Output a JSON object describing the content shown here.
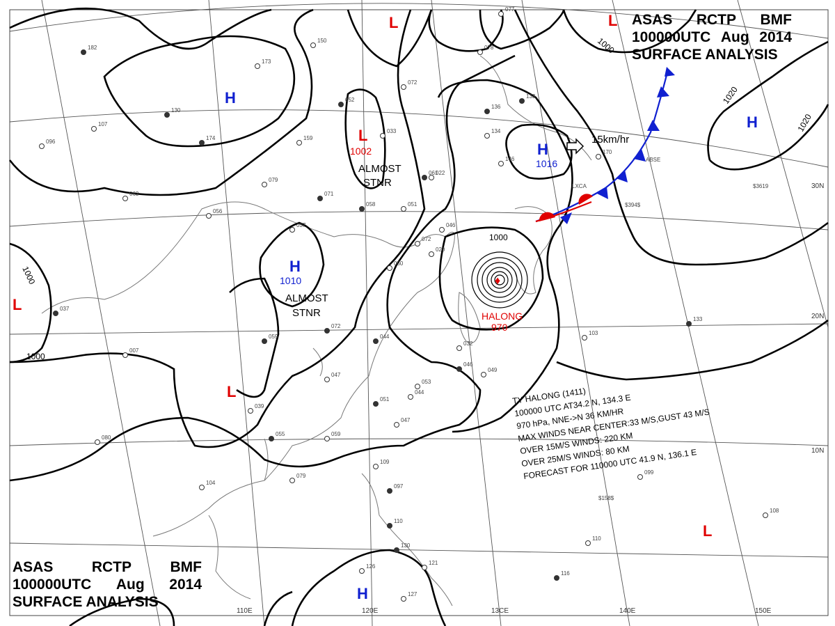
{
  "header": {
    "line1": [
      "ASAS",
      "RCTP",
      "BMF"
    ],
    "line2": [
      "100000UTC",
      "Aug",
      "2014"
    ],
    "line3": "SURFACE ANALYSIS"
  },
  "grid_labels": {
    "lon": [
      "110E",
      "120E",
      "13CE",
      "140E",
      "150E"
    ],
    "lat": [
      "30N",
      "20N",
      "10N"
    ]
  },
  "pressure_centers": [
    {
      "type": "L",
      "pressure": "1002",
      "note": "ALMOST\nSTNR"
    },
    {
      "type": "H",
      "pressure": "1010",
      "note": "ALMOST\nSTNR"
    },
    {
      "type": "H",
      "pressure": "1016",
      "motion": "15km/hr"
    },
    {
      "type": "L",
      "name": "HALONG",
      "pressure": "970"
    },
    {
      "type": "H"
    },
    {
      "type": "H"
    },
    {
      "type": "H"
    },
    {
      "type": "L"
    },
    {
      "type": "L"
    },
    {
      "type": "L"
    },
    {
      "type": "L"
    }
  ],
  "isobar_labels": [
    "1000",
    "1000",
    "1000",
    "1000",
    "1020",
    "1020"
  ],
  "typhoon_info": {
    "lines": [
      "TY  HALONG  (1411)",
      "100000 UTC  AT34.2 N, 134.3 E",
      "970 hPa, NNE->N  36 KM/HR",
      "MAX WINDS NEAR CENTER:33 M/S,GUST 43 M/S",
      "OVER 15M/S WINDS: 220 KM",
      "OVER 25M/S WINDS: 80 KM",
      "FORECAST FOR 110000 UTC 41.9 N, 136.1 E"
    ]
  },
  "stations": [
    "182",
    "173",
    "150",
    "130",
    "107",
    "096",
    "174",
    "159",
    "079",
    "071",
    "063",
    "056",
    "052",
    "072",
    "033",
    "037",
    "007",
    "037",
    "058",
    "051",
    "046",
    "072",
    "072",
    "022",
    "059",
    "050",
    "047",
    "044",
    "053",
    "039",
    "055",
    "080",
    "104",
    "110",
    "079",
    "109",
    "097",
    "126",
    "127",
    "130",
    "121",
    "032",
    "046",
    "049",
    "044",
    "051",
    "047",
    "059",
    "136",
    "134",
    "146",
    "061",
    "078",
    "077",
    "133",
    "170",
    "103",
    "133",
    "099",
    "110",
    "116",
    "108",
    "020"
  ],
  "station_ids": [
    "LXCA",
    "ABSE",
    "$394$",
    "$3619",
    "$158$"
  ],
  "colors": {
    "low": "#e00000",
    "high": "#1020d0",
    "warm_front": "#e00000",
    "cold_front": "#1020d0"
  }
}
